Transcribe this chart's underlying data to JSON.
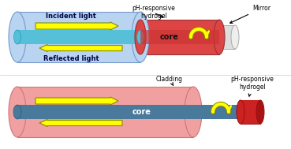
{
  "bg_color": "#ffffff",
  "top": {
    "clad_color": "#b8d4f0",
    "clad_edge": "#7799cc",
    "core_color": "#55c0d8",
    "core_edge": "#2299bb",
    "hydrogel_color": "#dd4444",
    "hydrogel_edge": "#993333",
    "hydrogel_dark": "#cc3333",
    "mirror_color": "#dddddd",
    "mirror_edge": "#aaaaaa",
    "arrow_fc": "#ffff00",
    "arrow_ec": "#888800",
    "incident_text": "Incident light",
    "reflected_text": "Reflected light",
    "core_text": "core",
    "hydrogel_label": "pH-responsive\nhydrogel",
    "mirror_label": "Mirror",
    "text_color": "#000044"
  },
  "bottom": {
    "clad_color": "#f0a0a0",
    "clad_edge": "#cc7777",
    "core_color": "#4a7a9b",
    "core_edge": "#2a5a7b",
    "hydrogel_color": "#cc2222",
    "hydrogel_edge": "#991111",
    "arrow_fc": "#ffff00",
    "arrow_ec": "#888800",
    "core_text": "core",
    "cladding_label": "Cladding",
    "hydrogel_label": "pH-responsive\nhydrogel",
    "text_color": "#000000"
  }
}
